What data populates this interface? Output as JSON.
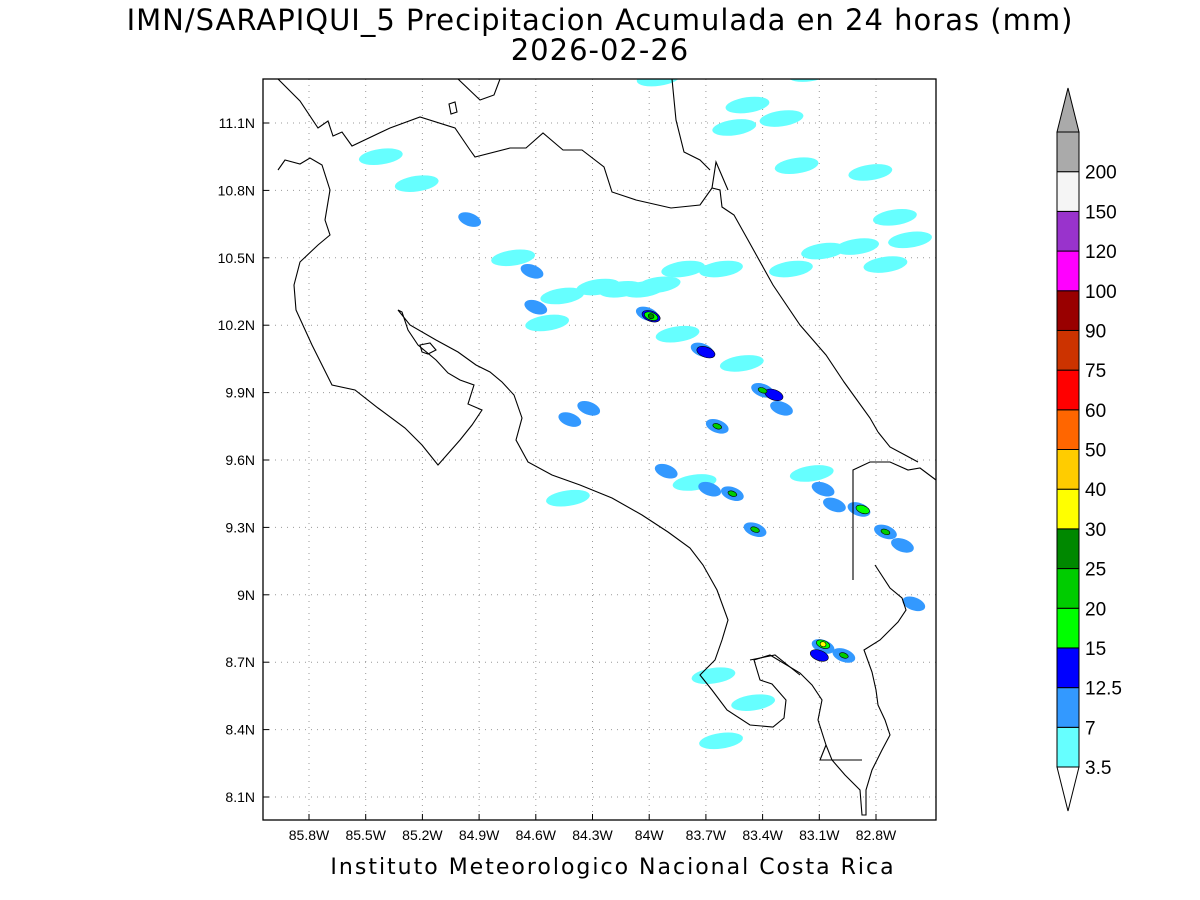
{
  "title": {
    "line1": "IMN/SARAPIQUI_5 Precipitacion Acumulada en 24 horas (mm)",
    "line2": "2026-02-26"
  },
  "footer": "Instituto Meteorologico Nacional Costa Rica",
  "map": {
    "lon_range": [
      -86.0,
      -82.56
    ],
    "lat_range": [
      8.0,
      11.3
    ],
    "grid": "dotted",
    "x_ticks": [
      {
        "value": -85.8,
        "label": "85.8W"
      },
      {
        "value": -85.5,
        "label": "85.5W"
      },
      {
        "value": -85.2,
        "label": "85.2W"
      },
      {
        "value": -84.9,
        "label": "84.9W"
      },
      {
        "value": -84.6,
        "label": "84.6W"
      },
      {
        "value": -84.3,
        "label": "84.3W"
      },
      {
        "value": -84.0,
        "label": "84W"
      },
      {
        "value": -83.7,
        "label": "83.7W"
      },
      {
        "value": -83.4,
        "label": "83.4W"
      },
      {
        "value": -83.1,
        "label": "83.1W"
      },
      {
        "value": -82.8,
        "label": "82.8W"
      }
    ],
    "y_ticks": [
      {
        "value": 11.1,
        "label": "11.1N"
      },
      {
        "value": 10.8,
        "label": "10.8N"
      },
      {
        "value": 10.5,
        "label": "10.5N"
      },
      {
        "value": 10.2,
        "label": "10.2N"
      },
      {
        "value": 9.9,
        "label": "9.9N"
      },
      {
        "value": 9.6,
        "label": "9.6N"
      },
      {
        "value": 9.3,
        "label": "9.3N"
      },
      {
        "value": 9.0,
        "label": "9N"
      },
      {
        "value": 8.7,
        "label": "8.7N"
      },
      {
        "value": 8.4,
        "label": "8.4N"
      },
      {
        "value": 8.1,
        "label": "8.1N"
      }
    ]
  },
  "colorbar": {
    "levels": [
      {
        "label": "3.5",
        "color": "#66ffff"
      },
      {
        "label": "7",
        "color": "#3399ff"
      },
      {
        "label": "12.5",
        "color": "#0000ff"
      },
      {
        "label": "15",
        "color": "#00ff00"
      },
      {
        "label": "20",
        "color": "#00cc00"
      },
      {
        "label": "25",
        "color": "#008800"
      },
      {
        "label": "30",
        "color": "#ffff00"
      },
      {
        "label": "40",
        "color": "#ffcc00"
      },
      {
        "label": "50",
        "color": "#ff6600"
      },
      {
        "label": "60",
        "color": "#ff0000"
      },
      {
        "label": "75",
        "color": "#cc3300"
      },
      {
        "label": "90",
        "color": "#990000"
      },
      {
        "label": "100",
        "color": "#ff00ff"
      },
      {
        "label": "120",
        "color": "#9933cc"
      },
      {
        "label": "150",
        "color": "#f5f5f5"
      },
      {
        "label": "200",
        "color": "#aaaaaa"
      }
    ],
    "under_color": "#ffffff",
    "over_color": "#aaaaaa"
  },
  "precip_cells": [
    {
      "lon": -84.03,
      "lat": 10.36,
      "level": 0
    },
    {
      "lon": -83.95,
      "lat": 10.38,
      "level": 0
    },
    {
      "lon": -84.15,
      "lat": 10.36,
      "level": 0
    },
    {
      "lon": -84.27,
      "lat": 10.37,
      "level": 0
    },
    {
      "lon": -84.01,
      "lat": 10.25,
      "level": 1
    },
    {
      "lon": -83.99,
      "lat": 10.24,
      "level": 2
    },
    {
      "lon": -83.99,
      "lat": 10.24,
      "level": 3
    },
    {
      "lon": -83.99,
      "lat": 10.24,
      "level": 5
    },
    {
      "lon": -83.85,
      "lat": 10.16,
      "level": 0
    },
    {
      "lon": -83.72,
      "lat": 10.09,
      "level": 1
    },
    {
      "lon": -83.7,
      "lat": 10.08,
      "level": 2
    },
    {
      "lon": -84.62,
      "lat": 10.44,
      "level": 1
    },
    {
      "lon": -84.6,
      "lat": 10.28,
      "level": 1
    },
    {
      "lon": -84.54,
      "lat": 10.21,
      "level": 0
    },
    {
      "lon": -84.46,
      "lat": 10.33,
      "level": 0
    },
    {
      "lon": -83.62,
      "lat": 10.45,
      "level": 0
    },
    {
      "lon": -83.51,
      "lat": 10.03,
      "level": 0
    },
    {
      "lon": -83.4,
      "lat": 9.91,
      "level": 1
    },
    {
      "lon": -83.4,
      "lat": 9.91,
      "level": 4
    },
    {
      "lon": -83.34,
      "lat": 9.89,
      "level": 2
    },
    {
      "lon": -83.3,
      "lat": 9.83,
      "level": 1
    },
    {
      "lon": -83.64,
      "lat": 9.75,
      "level": 1
    },
    {
      "lon": -83.64,
      "lat": 9.75,
      "level": 4
    },
    {
      "lon": -83.56,
      "lat": 9.45,
      "level": 1
    },
    {
      "lon": -83.56,
      "lat": 9.45,
      "level": 4
    },
    {
      "lon": -83.44,
      "lat": 9.29,
      "level": 1
    },
    {
      "lon": -83.44,
      "lat": 9.29,
      "level": 4
    },
    {
      "lon": -82.89,
      "lat": 9.38,
      "level": 1
    },
    {
      "lon": -82.87,
      "lat": 9.38,
      "level": 3
    },
    {
      "lon": -82.75,
      "lat": 9.28,
      "level": 1
    },
    {
      "lon": -82.75,
      "lat": 9.28,
      "level": 4
    },
    {
      "lon": -82.66,
      "lat": 9.22,
      "level": 1
    },
    {
      "lon": -83.08,
      "lat": 9.47,
      "level": 1
    },
    {
      "lon": -83.02,
      "lat": 9.4,
      "level": 1
    },
    {
      "lon": -83.14,
      "lat": 9.54,
      "level": 0
    },
    {
      "lon": -83.08,
      "lat": 8.77,
      "level": 1
    },
    {
      "lon": -83.08,
      "lat": 8.78,
      "level": 3
    },
    {
      "lon": -83.08,
      "lat": 8.78,
      "level": 6
    },
    {
      "lon": -83.1,
      "lat": 8.73,
      "level": 2
    },
    {
      "lon": -82.97,
      "lat": 8.73,
      "level": 1
    },
    {
      "lon": -82.97,
      "lat": 8.73,
      "level": 4
    },
    {
      "lon": -84.42,
      "lat": 9.78,
      "level": 1
    },
    {
      "lon": -84.32,
      "lat": 9.83,
      "level": 1
    },
    {
      "lon": -83.91,
      "lat": 9.55,
      "level": 1
    },
    {
      "lon": -83.76,
      "lat": 9.5,
      "level": 0
    },
    {
      "lon": -83.68,
      "lat": 9.47,
      "level": 1
    },
    {
      "lon": -84.43,
      "lat": 9.43,
      "level": 0
    },
    {
      "lon": -83.62,
      "lat": 8.35,
      "level": 0
    },
    {
      "lon": -83.66,
      "lat": 8.64,
      "level": 0
    },
    {
      "lon": -83.45,
      "lat": 8.52,
      "level": 0
    },
    {
      "lon": -82.6,
      "lat": 8.96,
      "level": 1
    },
    {
      "lon": -84.95,
      "lat": 10.67,
      "level": 1
    },
    {
      "lon": -85.23,
      "lat": 10.83,
      "level": 0
    },
    {
      "lon": -85.42,
      "lat": 10.95,
      "level": 0
    },
    {
      "lon": -84.72,
      "lat": 10.5,
      "level": 0
    },
    {
      "lon": -83.95,
      "lat": 11.3,
      "level": 0
    },
    {
      "lon": -83.15,
      "lat": 11.32,
      "level": 0
    },
    {
      "lon": -83.48,
      "lat": 11.18,
      "level": 0
    },
    {
      "lon": -83.3,
      "lat": 11.12,
      "level": 0
    },
    {
      "lon": -83.55,
      "lat": 11.08,
      "level": 0
    },
    {
      "lon": -83.22,
      "lat": 10.91,
      "level": 0
    },
    {
      "lon": -82.83,
      "lat": 10.88,
      "level": 0
    },
    {
      "lon": -82.7,
      "lat": 10.68,
      "level": 0
    },
    {
      "lon": -82.62,
      "lat": 10.58,
      "level": 0
    },
    {
      "lon": -83.08,
      "lat": 10.53,
      "level": 0
    },
    {
      "lon": -82.9,
      "lat": 10.55,
      "level": 0
    },
    {
      "lon": -82.75,
      "lat": 10.47,
      "level": 0
    },
    {
      "lon": -83.25,
      "lat": 10.45,
      "level": 0
    },
    {
      "lon": -83.82,
      "lat": 10.45,
      "level": 0
    }
  ]
}
